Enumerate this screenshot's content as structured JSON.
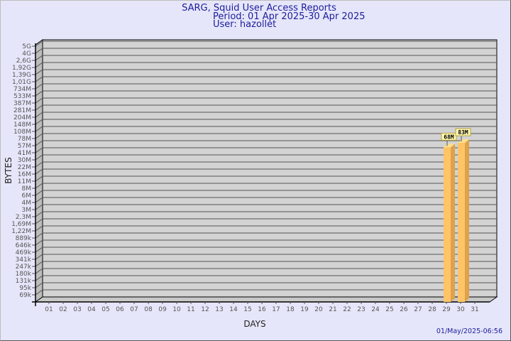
{
  "header": {
    "title": "SARG, Squid User Access Reports",
    "period": "Period: 01 Apr 2025-30 Apr 2025",
    "user": "User: hazollet"
  },
  "footer": {
    "timestamp": "01/May/2025-06:56"
  },
  "chart_data": {
    "type": "bar",
    "xlabel": "DAYS",
    "ylabel": "BYTES",
    "y_scale": "log",
    "grid": true,
    "y_ticks": [
      "5G",
      "4G",
      "2,6G",
      "1,92G",
      "1,39G",
      "1,01G",
      "734M",
      "533M",
      "387M",
      "281M",
      "204M",
      "148M",
      "108M",
      "78M",
      "57M",
      "41M",
      "30M",
      "22M",
      "16M",
      "11M",
      "8M",
      "6M",
      "4M",
      "3M",
      "2,3M",
      "1,69M",
      "1,22M",
      "889k",
      "646k",
      "469k",
      "341k",
      "247k",
      "180k",
      "131k",
      "95k",
      "69k"
    ],
    "categories": [
      "01",
      "02",
      "03",
      "04",
      "05",
      "06",
      "07",
      "08",
      "09",
      "10",
      "11",
      "12",
      "13",
      "14",
      "15",
      "16",
      "17",
      "18",
      "19",
      "20",
      "21",
      "22",
      "23",
      "24",
      "25",
      "26",
      "27",
      "28",
      "29",
      "30",
      "31"
    ],
    "bars": [
      {
        "day": "29",
        "value_mb": 68,
        "label": "68M"
      },
      {
        "day": "30",
        "value_mb": 83,
        "label": "83M"
      }
    ],
    "colors": {
      "bar": "#ffc466",
      "bar_side": "#dda24a",
      "bar_top": "#ffe08a",
      "plot": "#d3d3d3",
      "label_bg": "#fff8b0"
    }
  }
}
